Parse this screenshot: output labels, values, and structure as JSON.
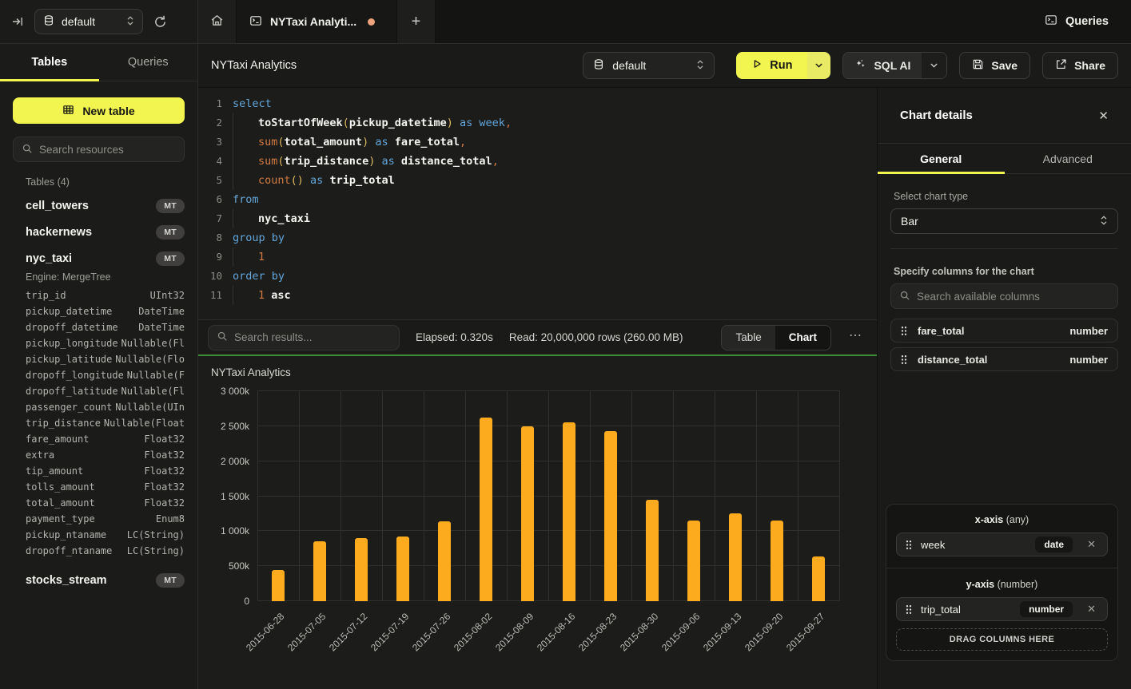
{
  "top_bar": {
    "database_selector": "default",
    "tab_title": "NYTaxi Analyti...",
    "queries_button": "Queries"
  },
  "sidebar": {
    "tabs": {
      "tables": "Tables",
      "queries": "Queries"
    },
    "new_table_button": "New table",
    "search_placeholder": "Search resources",
    "section_label": "Tables (4)",
    "tables": [
      {
        "name": "cell_towers",
        "badge": "MT"
      },
      {
        "name": "hackernews",
        "badge": "MT"
      },
      {
        "name": "nyc_taxi",
        "badge": "MT",
        "engine": "Engine: MergeTree",
        "columns": [
          [
            "trip_id",
            "UInt32"
          ],
          [
            "pickup_datetime",
            "DateTime"
          ],
          [
            "dropoff_datetime",
            "DateTime"
          ],
          [
            "pickup_longitude",
            "Nullable(Fl"
          ],
          [
            "pickup_latitude",
            "Nullable(Flo"
          ],
          [
            "dropoff_longitude",
            "Nullable(F"
          ],
          [
            "dropoff_latitude",
            "Nullable(Fl"
          ],
          [
            "passenger_count",
            "Nullable(UIn"
          ],
          [
            "trip_distance",
            "Nullable(Float"
          ],
          [
            "fare_amount",
            "Float32"
          ],
          [
            "extra",
            "Float32"
          ],
          [
            "tip_amount",
            "Float32"
          ],
          [
            "tolls_amount",
            "Float32"
          ],
          [
            "total_amount",
            "Float32"
          ],
          [
            "payment_type",
            "Enum8"
          ],
          [
            "pickup_ntaname",
            "LC(String)"
          ],
          [
            "dropoff_ntaname",
            "LC(String)"
          ]
        ]
      },
      {
        "name": "stocks_stream",
        "badge": "MT"
      }
    ]
  },
  "toolbar": {
    "title": "NYTaxi Analytics",
    "database_selector": "default",
    "run_label": "Run",
    "sql_ai_label": "SQL AI",
    "save_label": "Save",
    "share_label": "Share"
  },
  "editor": {
    "lines": [
      {
        "n": "1",
        "ind": false,
        "t": [
          [
            "k",
            "select"
          ]
        ]
      },
      {
        "n": "2",
        "ind": true,
        "t": [
          [
            "i",
            "toStartOfWeek"
          ],
          [
            "p",
            "("
          ],
          [
            "i",
            "pickup_datetime"
          ],
          [
            "p",
            ")"
          ],
          [
            "w",
            " "
          ],
          [
            "k",
            "as"
          ],
          [
            "w",
            " "
          ],
          [
            "k",
            "week"
          ],
          [
            "n",
            ","
          ]
        ]
      },
      {
        "n": "3",
        "ind": true,
        "t": [
          [
            "f",
            "sum"
          ],
          [
            "p",
            "("
          ],
          [
            "i",
            "total_amount"
          ],
          [
            "p",
            ")"
          ],
          [
            "w",
            " "
          ],
          [
            "k",
            "as"
          ],
          [
            "w",
            " "
          ],
          [
            "i",
            "fare_total"
          ],
          [
            "n",
            ","
          ]
        ]
      },
      {
        "n": "4",
        "ind": true,
        "t": [
          [
            "f",
            "sum"
          ],
          [
            "p",
            "("
          ],
          [
            "i",
            "trip_distance"
          ],
          [
            "p",
            ")"
          ],
          [
            "w",
            " "
          ],
          [
            "k",
            "as"
          ],
          [
            "w",
            " "
          ],
          [
            "i",
            "distance_total"
          ],
          [
            "n",
            ","
          ]
        ]
      },
      {
        "n": "5",
        "ind": true,
        "t": [
          [
            "f",
            "count"
          ],
          [
            "p",
            "()"
          ],
          [
            "w",
            " "
          ],
          [
            "k",
            "as"
          ],
          [
            "w",
            " "
          ],
          [
            "i",
            "trip_total"
          ]
        ]
      },
      {
        "n": "6",
        "ind": false,
        "t": [
          [
            "k",
            "from"
          ]
        ]
      },
      {
        "n": "7",
        "ind": true,
        "t": [
          [
            "i",
            "nyc_taxi"
          ]
        ]
      },
      {
        "n": "8",
        "ind": false,
        "t": [
          [
            "k",
            "group by"
          ]
        ]
      },
      {
        "n": "9",
        "ind": true,
        "t": [
          [
            "n",
            "1"
          ]
        ]
      },
      {
        "n": "10",
        "ind": false,
        "t": [
          [
            "k",
            "order by"
          ]
        ]
      },
      {
        "n": "11",
        "ind": true,
        "t": [
          [
            "n",
            "1"
          ],
          [
            "w",
            " "
          ],
          [
            "i",
            "asc"
          ]
        ]
      }
    ]
  },
  "results_bar": {
    "search_placeholder": "Search results...",
    "elapsed": "Elapsed: 0.320s",
    "read": "Read: 20,000,000 rows (260.00 MB)",
    "toggle_table": "Table",
    "toggle_chart": "Chart",
    "active_view": "Chart"
  },
  "chart_data": {
    "type": "bar",
    "title": "NYTaxi Analytics",
    "xlabel": "week",
    "ylabel": "trip_total",
    "grid": true,
    "legend": false,
    "bar_color": "#fcab1e",
    "categories": [
      "2015-06-28",
      "2015-07-05",
      "2015-07-12",
      "2015-07-19",
      "2015-07-26",
      "2015-08-02",
      "2015-08-09",
      "2015-08-16",
      "2015-08-23",
      "2015-08-30",
      "2015-09-06",
      "2015-09-13",
      "2015-09-20",
      "2015-09-27"
    ],
    "values": [
      440000,
      850000,
      900000,
      920000,
      1140000,
      2620000,
      2500000,
      2560000,
      2430000,
      1450000,
      1150000,
      1250000,
      1150000,
      640000
    ],
    "ylim": [
      0,
      3000000
    ],
    "yticks": [
      0,
      500000,
      1000000,
      1500000,
      2000000,
      2500000,
      3000000
    ],
    "ytick_labels": [
      "0",
      "500k",
      "1 000k",
      "1 500k",
      "2 000k",
      "2 500k",
      "3 000k"
    ]
  },
  "details_panel": {
    "title": "Chart details",
    "tabs": {
      "general": "General",
      "advanced": "Advanced"
    },
    "active_tab": "General",
    "chart_type_label": "Select chart type",
    "chart_type_value": "Bar",
    "columns_label": "Specify columns for the chart",
    "columns_search_placeholder": "Search available columns",
    "available_columns": [
      {
        "name": "fare_total",
        "type": "number"
      },
      {
        "name": "distance_total",
        "type": "number"
      }
    ],
    "x_axis": {
      "label": "x-axis",
      "accepts": "(any)",
      "columns": [
        {
          "name": "week",
          "type": "date"
        }
      ]
    },
    "y_axis": {
      "label": "y-axis",
      "accepts": "(number)",
      "columns": [
        {
          "name": "trip_total",
          "type": "number"
        }
      ]
    },
    "drop_zone_label": "DRAG COLUMNS HERE"
  },
  "colors": {
    "accent_yellow": "#f2f44f",
    "bar_orange": "#fcab1e",
    "success_green": "#3e8a3b",
    "unsaved_dot": "#efa37c"
  }
}
